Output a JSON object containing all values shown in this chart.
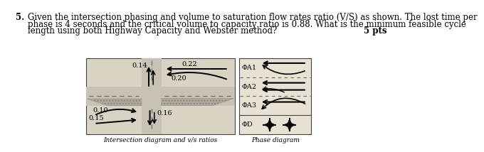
{
  "background_color": "#ffffff",
  "q_num": "5.",
  "q_line1": "Given the intersection phasing and volume to saturation flow rates ratio (V/S) as shown. The lost time per",
  "q_line2": "phase is 4 seconds and the critical volume to capacity ratio is 0.88. What is the minimum feasible cycle",
  "q_line3": "length using both Highway Capacity and Webster method?",
  "pts": "5 pts",
  "inter_caption": "Intersection diagram and v/s ratios",
  "phase_caption": "Phase diagram",
  "v_top_left": "0.14",
  "v_top_right": "0.22",
  "v_mid_right": "0.20",
  "v_bot_left_u": "0.10",
  "v_bot_left_l": "0.15",
  "v_bot_right": "0.16",
  "phase_labels": [
    "ΦA1",
    "ΦA2",
    "ΦA3",
    "ΦD"
  ],
  "diag_bg": "#d9d3c4",
  "road_bg": "#c8c2b4",
  "phase_bg": "#e8e2d4",
  "phase_solid_bg": "#d9d3c4",
  "q_fs": 8.5,
  "lbl_fs": 6.5,
  "val_fs": 7.0
}
